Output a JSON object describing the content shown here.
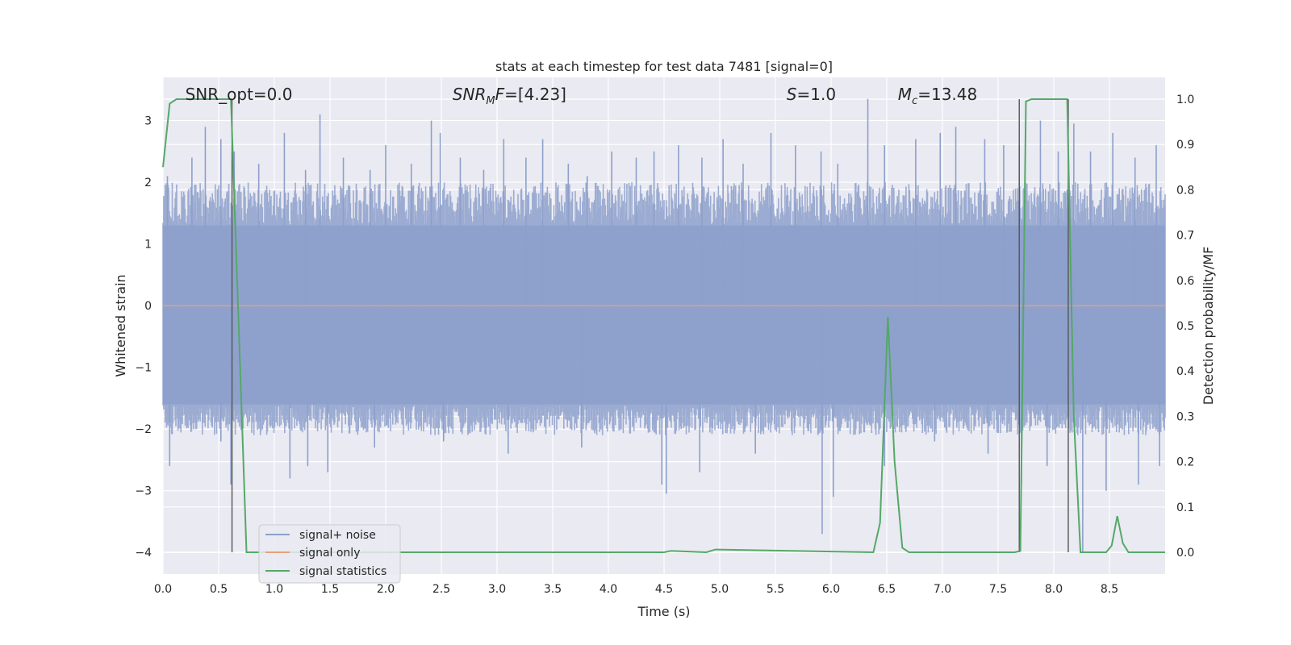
{
  "chart_data": {
    "type": "line",
    "title": "stats at each timestep for test data 7481 [signal=0]",
    "xlabel": "Time (s)",
    "ylabel_left": "Whitened strain",
    "ylabel_right": "Detection probability/MF",
    "xlim": [
      0.0,
      9.0
    ],
    "ylim_left": [
      -4.35,
      3.7
    ],
    "ylim_right": [
      -0.048,
      1.048
    ],
    "xticks": [
      "0.0",
      "0.5",
      "1.0",
      "1.5",
      "2.0",
      "2.5",
      "3.0",
      "3.5",
      "4.0",
      "4.5",
      "5.0",
      "5.5",
      "6.0",
      "6.5",
      "7.0",
      "7.5",
      "8.0",
      "8.5"
    ],
    "yticks_left": [
      "3",
      "2",
      "1",
      "0",
      "−1",
      "−2",
      "−3",
      "−4"
    ],
    "yticks_right": [
      "1.0",
      "0.9",
      "0.8",
      "0.7",
      "0.6",
      "0.5",
      "0.4",
      "0.3",
      "0.2",
      "0.1",
      "0.0"
    ],
    "grid": true,
    "annotations": [
      {
        "prefix": "SNR_opt",
        "value": "=0.0",
        "x": 0.2
      },
      {
        "prefix": "SNR",
        "sub": "M",
        "suffix": "F",
        "value": "=[4.23]",
        "x": 2.6
      },
      {
        "prefix": "S",
        "value": "=1.0",
        "x": 5.6
      },
      {
        "prefix": "M",
        "sub": "c",
        "value": "=13.48",
        "x": 6.6
      }
    ],
    "legend": {
      "placement": "lower-left",
      "entries": [
        {
          "label": "signal+ noise",
          "color": "#8da0cb"
        },
        {
          "label": "signal only",
          "color": "#e5a178"
        },
        {
          "label": "signal statistics",
          "color": "#55a868"
        }
      ]
    },
    "noise_series": {
      "name": "signal+ noise",
      "color": "#8da0cb",
      "core_upper": 1.3,
      "core_lower": -1.6,
      "spikes_up": [
        [
          0.04,
          2.1
        ],
        [
          0.26,
          2.4
        ],
        [
          0.38,
          2.9
        ],
        [
          0.52,
          2.7
        ],
        [
          0.64,
          2.5
        ],
        [
          0.86,
          2.3
        ],
        [
          1.09,
          2.8
        ],
        [
          1.28,
          2.2
        ],
        [
          1.41,
          3.1
        ],
        [
          1.62,
          2.4
        ],
        [
          1.86,
          2.2
        ],
        [
          2.0,
          2.6
        ],
        [
          2.23,
          2.3
        ],
        [
          2.41,
          3.0
        ],
        [
          2.49,
          2.8
        ],
        [
          2.67,
          2.4
        ],
        [
          2.88,
          2.2
        ],
        [
          3.06,
          2.7
        ],
        [
          3.26,
          2.4
        ],
        [
          3.41,
          2.7
        ],
        [
          3.64,
          2.3
        ],
        [
          3.81,
          2.1
        ],
        [
          4.03,
          2.5
        ],
        [
          4.25,
          2.4
        ],
        [
          4.41,
          2.5
        ],
        [
          4.63,
          2.6
        ],
        [
          4.84,
          2.4
        ],
        [
          5.03,
          2.7
        ],
        [
          5.21,
          2.3
        ],
        [
          5.46,
          2.8
        ],
        [
          5.68,
          2.6
        ],
        [
          5.91,
          2.5
        ],
        [
          6.06,
          2.3
        ],
        [
          6.33,
          3.35
        ],
        [
          6.48,
          2.6
        ],
        [
          6.76,
          2.7
        ],
        [
          6.98,
          2.8
        ],
        [
          7.12,
          2.9
        ],
        [
          7.38,
          2.7
        ],
        [
          7.55,
          2.6
        ],
        [
          7.69,
          2.6
        ],
        [
          7.88,
          3.0
        ],
        [
          8.04,
          2.5
        ],
        [
          8.18,
          2.95
        ],
        [
          8.33,
          2.5
        ],
        [
          8.53,
          2.8
        ],
        [
          8.73,
          2.4
        ],
        [
          8.92,
          2.6
        ]
      ],
      "spikes_down": [
        [
          0.06,
          -2.6
        ],
        [
          0.52,
          -2.2
        ],
        [
          0.61,
          -2.9
        ],
        [
          1.14,
          -2.8
        ],
        [
          1.3,
          -2.6
        ],
        [
          1.48,
          -2.7
        ],
        [
          1.9,
          -2.3
        ],
        [
          2.52,
          -2.2
        ],
        [
          3.1,
          -2.4
        ],
        [
          3.76,
          -2.3
        ],
        [
          4.48,
          -2.9
        ],
        [
          4.52,
          -3.05
        ],
        [
          4.82,
          -2.7
        ],
        [
          5.32,
          -2.4
        ],
        [
          5.92,
          -3.7
        ],
        [
          6.02,
          -3.1
        ],
        [
          6.48,
          -2.6
        ],
        [
          6.93,
          -2.2
        ],
        [
          7.41,
          -2.4
        ],
        [
          7.71,
          -2.9
        ],
        [
          7.94,
          -2.6
        ],
        [
          8.26,
          -4.0
        ],
        [
          8.47,
          -3.0
        ],
        [
          8.76,
          -2.9
        ],
        [
          8.95,
          -2.6
        ]
      ]
    },
    "signal_only": {
      "name": "signal only",
      "color": "#e5a178",
      "y": 0.0
    },
    "stats_series": {
      "name": "signal statistics",
      "color": "#55a868",
      "x": [
        0.0,
        0.06,
        0.12,
        0.61,
        0.75,
        0.88,
        4.5,
        4.56,
        4.88,
        4.96,
        6.38,
        6.44,
        6.51,
        6.57,
        6.64,
        6.7,
        7.65,
        7.7,
        7.75,
        7.8,
        8.12,
        8.18,
        8.24,
        8.3,
        8.47,
        8.52,
        8.57,
        8.62,
        8.67,
        8.73,
        9.0
      ],
      "y": [
        0.85,
        0.99,
        1.0,
        1.0,
        0.0,
        0.0,
        0.0,
        0.003,
        0.0,
        0.006,
        0.0,
        0.065,
        0.52,
        0.2,
        0.01,
        0.0,
        0.0,
        0.003,
        0.995,
        1.0,
        1.0,
        0.3,
        0.0,
        0.0,
        0.0,
        0.015,
        0.08,
        0.02,
        0.0,
        0.0,
        0.0
      ]
    },
    "vertical_markers": [
      {
        "x": 0.62,
        "y_from": 1.0,
        "y_to": 0.0
      },
      {
        "x": 7.69,
        "y_from": 1.0,
        "y_to": 0.0
      },
      {
        "x": 8.13,
        "y_from": 1.0,
        "y_to": 0.0
      }
    ]
  }
}
